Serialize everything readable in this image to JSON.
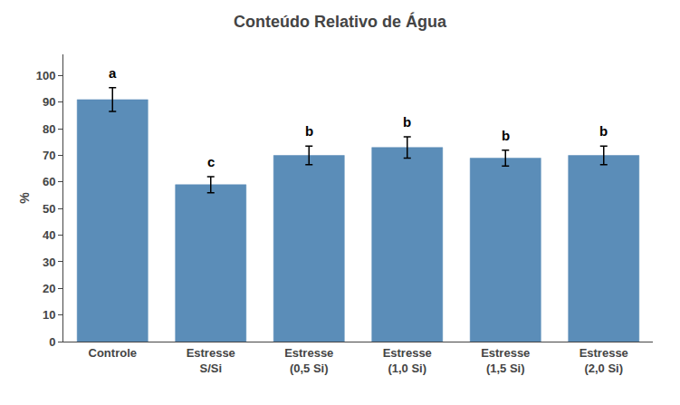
{
  "chart_data": {
    "type": "bar",
    "title": "Conteúdo Relativo de Água",
    "ylabel": "%",
    "categories": [
      "Controle",
      "Estresse\nS/Si",
      "Estresse\n(0,5 Si)",
      "Estresse\n(1,0 Si)",
      "Estresse\n(1,5 Si)",
      "Estresse\n(2,0 Si)"
    ],
    "values": [
      91,
      59,
      70,
      73,
      69,
      70
    ],
    "errors": [
      4.5,
      3.0,
      3.5,
      4.0,
      3.0,
      3.5
    ],
    "annotations": [
      "a",
      "c",
      "b",
      "b",
      "b",
      "b"
    ],
    "color": "#5B8DB8",
    "ylim": [
      0,
      108
    ],
    "yticks": [
      0,
      10,
      20,
      30,
      40,
      50,
      60,
      70,
      80,
      90,
      100
    ],
    "grid": false
  }
}
